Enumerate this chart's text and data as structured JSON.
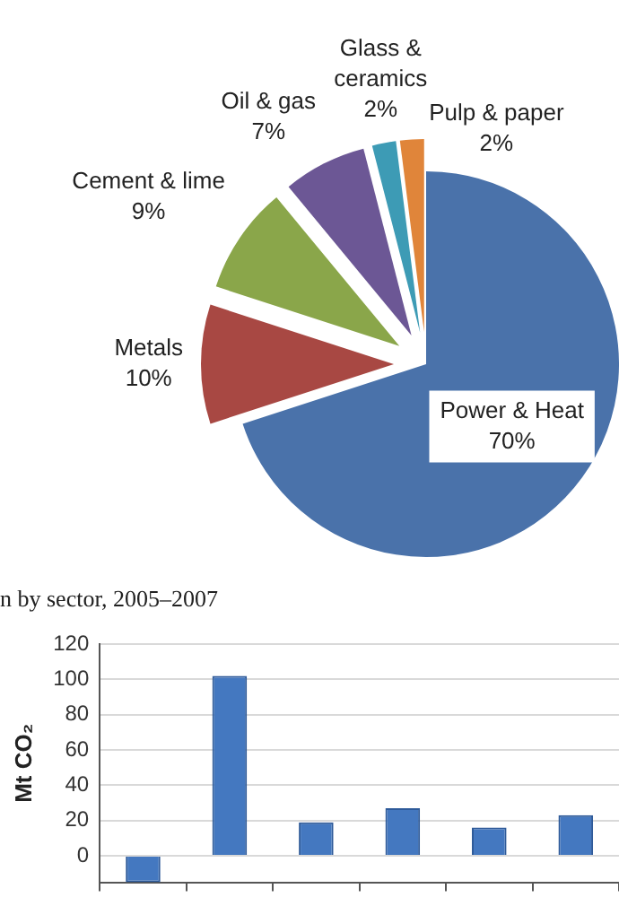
{
  "chart_data": [
    {
      "type": "pie",
      "categories": [
        "Power & Heat",
        "Metals",
        "Cement & lime",
        "Oil & gas",
        "Glass & ceramics",
        "Pulp & paper"
      ],
      "values": [
        70,
        10,
        9,
        7,
        2,
        2
      ],
      "value_labels": [
        "70%",
        "10%",
        "9%",
        "7%",
        "2%",
        "2%"
      ],
      "colors": [
        "#4a72aa",
        "#a84843",
        "#8aa64a",
        "#6c5795",
        "#3d9bb5",
        "#e0853a"
      ],
      "annotations": [
        "n by sector, 2005–2007"
      ]
    },
    {
      "type": "bar",
      "categories": [
        null,
        null,
        null,
        null,
        null,
        null
      ],
      "values": [
        -15,
        102,
        19,
        27,
        16,
        23
      ],
      "color": "#4478c0",
      "ylabel": "Mt CO₂",
      "ylim": [
        -15,
        120
      ],
      "yticks": [
        0,
        20,
        40,
        60,
        80,
        100,
        120
      ],
      "grid": "y",
      "tick_labels": "y",
      "legend": false
    }
  ]
}
